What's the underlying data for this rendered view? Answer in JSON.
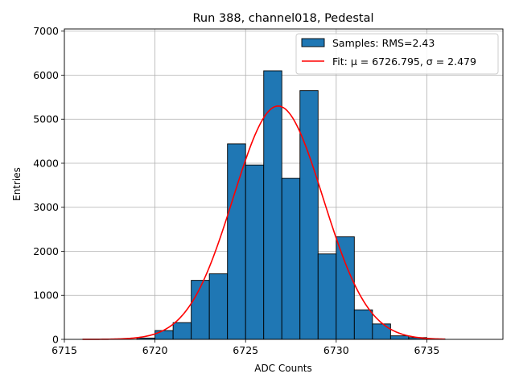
{
  "chart_data": {
    "type": "bar",
    "title": "Run 388, channel018, Pedestal",
    "xlabel": "ADC Counts",
    "ylabel": "Entries",
    "xlim": [
      6715,
      6739.2
    ],
    "ylim": [
      0,
      7050
    ],
    "xticks": [
      6715,
      6720,
      6725,
      6730,
      6735
    ],
    "yticks": [
      0,
      1000,
      2000,
      3000,
      4000,
      5000,
      6000,
      7000
    ],
    "grid": true,
    "legend_position": "top-right",
    "histogram": {
      "name": "Samples: RMS=2.43",
      "color": "#1f77b4",
      "bin_width": 1,
      "bins": [
        {
          "x0": 6719,
          "value": 30
        },
        {
          "x0": 6720,
          "value": 200
        },
        {
          "x0": 6721,
          "value": 380
        },
        {
          "x0": 6722,
          "value": 1340
        },
        {
          "x0": 6723,
          "value": 1490
        },
        {
          "x0": 6724,
          "value": 4440
        },
        {
          "x0": 6725,
          "value": 3960
        },
        {
          "x0": 6726,
          "value": 6100
        },
        {
          "x0": 6727,
          "value": 3660
        },
        {
          "x0": 6728,
          "value": 5650
        },
        {
          "x0": 6729,
          "value": 1940
        },
        {
          "x0": 6730,
          "value": 2330
        },
        {
          "x0": 6731,
          "value": 670
        },
        {
          "x0": 6732,
          "value": 350
        },
        {
          "x0": 6733,
          "value": 80
        },
        {
          "x0": 6734,
          "value": 40
        },
        {
          "x0": 6735,
          "value": 10
        }
      ]
    },
    "fit": {
      "name": "Fit: μ = 6726.795, σ = 2.479",
      "color": "#ff0000",
      "mu": 6726.795,
      "sigma": 2.479,
      "amplitude": 5300,
      "x_range": [
        6716,
        6736
      ]
    }
  }
}
